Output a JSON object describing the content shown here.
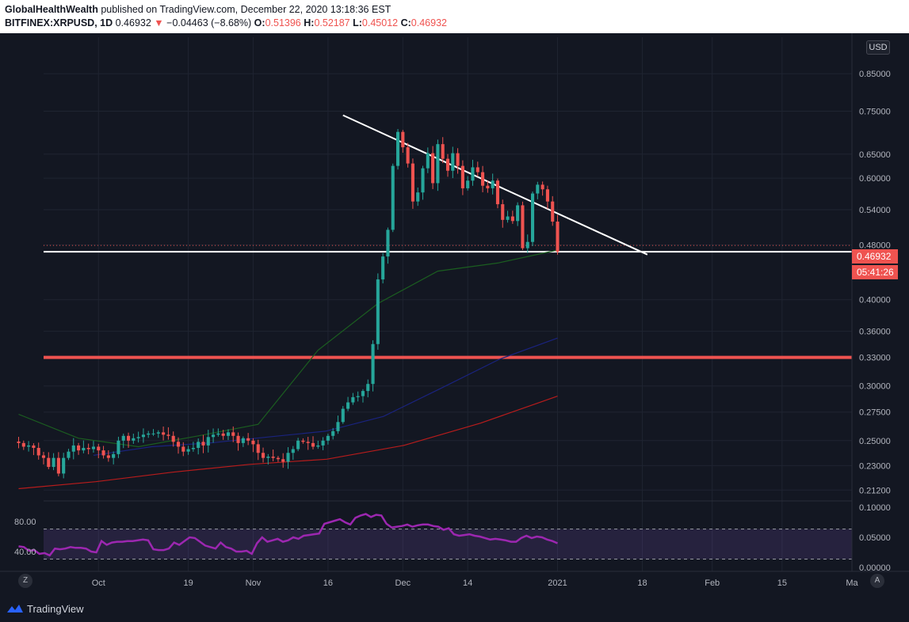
{
  "header": {
    "publisher": "GlobalHealthWealth",
    "published_text": " published on TradingView.com, December 22, 2020 13:18:36 EST",
    "symbol": "BITFINEX:XRPUSD, 1D",
    "last": "0.46932",
    "change": "−0.04463 (−8.68%)",
    "open_label": "O:",
    "open": "0.51396",
    "high_label": "H:",
    "high": "0.52187",
    "low_label": "L:",
    "low": "0.45012",
    "close_label": "C:",
    "close": "0.46932"
  },
  "currency_badge": "USD",
  "last_price_tag": "0.46932",
  "countdown_tag": "05:41:26",
  "footer": {
    "brand": "TradingView"
  },
  "buttons": {
    "zoom": "Z",
    "auto": "A"
  },
  "colors": {
    "background": "#131722",
    "up": "#26a69a",
    "down": "#ef5350",
    "ma_fast": "#1b5e20",
    "ma_mid": "#1a237e",
    "ma_slow": "#b71c1c",
    "rsi": "#9c27b0",
    "support_line": "#ef5350",
    "trend_line": "#ffffff"
  },
  "chart_data": [
    {
      "type": "candlestick",
      "scale": "log",
      "ylim": [
        0.205,
        0.96
      ],
      "y_ticks": [
        "0.85000",
        "0.75000",
        "0.65000",
        "0.60000",
        "0.54000",
        "0.48000",
        "0.40000",
        "0.36000",
        "0.33000",
        "0.30000",
        "0.27500",
        "0.25000",
        "0.23000",
        "0.21200"
      ],
      "x_tick_labels": [
        "Oct",
        "19",
        "Nov",
        "16",
        "Dec",
        "14",
        "2021",
        "18",
        "Feb",
        "15",
        "Ma"
      ],
      "x_tick_dates": [
        "2020-10-01",
        "2020-10-19",
        "2020-11-01",
        "2020-11-16",
        "2020-12-01",
        "2020-12-14",
        "2021-01-01",
        "2021-01-18",
        "2021-02-01",
        "2021-02-15",
        "2021-03-01"
      ],
      "x_range": [
        "2020-09-20",
        "2021-03-01"
      ],
      "closes": [
        0.248,
        0.245,
        0.246,
        0.244,
        0.238,
        0.236,
        0.229,
        0.236,
        0.224,
        0.236,
        0.241,
        0.246,
        0.242,
        0.244,
        0.243,
        0.245,
        0.242,
        0.238,
        0.236,
        0.239,
        0.25,
        0.254,
        0.25,
        0.252,
        0.253,
        0.255,
        0.256,
        0.256,
        0.257,
        0.255,
        0.254,
        0.249,
        0.245,
        0.241,
        0.243,
        0.244,
        0.249,
        0.246,
        0.253,
        0.255,
        0.256,
        0.254,
        0.257,
        0.254,
        0.248,
        0.252,
        0.25,
        0.247,
        0.24,
        0.236,
        0.237,
        0.236,
        0.235,
        0.233,
        0.24,
        0.243,
        0.25,
        0.249,
        0.248,
        0.245,
        0.246,
        0.25,
        0.254,
        0.258,
        0.266,
        0.278,
        0.284,
        0.289,
        0.29,
        0.295,
        0.302,
        0.345,
        0.428,
        0.462,
        0.505,
        0.625,
        0.7,
        0.665,
        0.63,
        0.555,
        0.572,
        0.62,
        0.652,
        0.59,
        0.672,
        0.64,
        0.615,
        0.652,
        0.625,
        0.58,
        0.595,
        0.622,
        0.612,
        0.585,
        0.58,
        0.595,
        0.55,
        0.522,
        0.528,
        0.52,
        0.548,
        0.475,
        0.485,
        0.57,
        0.587,
        0.578,
        0.555,
        0.519,
        0.4693
      ],
      "ma_fast": [
        0.273,
        0.252,
        0.245,
        0.254,
        0.264,
        0.338,
        0.395,
        0.44,
        0.452,
        0.472
      ],
      "ma_mid": [
        0.238,
        0.245,
        0.248,
        0.253,
        0.258,
        0.271,
        0.298,
        0.328,
        0.352
      ],
      "ma_slow": [
        0.213,
        0.218,
        0.225,
        0.231,
        0.235,
        0.246,
        0.265,
        0.29
      ],
      "horizontal_lines": [
        {
          "price": 0.33,
          "color": "red"
        },
        {
          "price": 0.4693,
          "color": "white"
        }
      ],
      "trend_line": {
        "from": [
          "2020-11-19",
          0.74
        ],
        "to": [
          "2021-01-19",
          0.465
        ]
      }
    },
    {
      "type": "line",
      "name_hint": "RSI pane",
      "y_ticks_left": [
        "80.00",
        "40.00"
      ],
      "y_ticks_right": [
        "0.10000",
        "0.05000",
        "0.00000"
      ],
      "bands": [
        70,
        30
      ],
      "values": [
        47,
        46,
        41,
        42,
        37,
        38,
        35,
        44,
        43,
        44,
        46,
        45,
        45,
        44,
        40,
        39,
        54,
        49,
        52,
        53,
        53,
        54,
        54,
        55,
        56,
        55,
        43,
        42,
        42,
        44,
        52,
        49,
        54,
        59,
        58,
        53,
        48,
        46,
        44,
        52,
        46,
        44,
        40,
        40,
        41,
        37,
        51,
        59,
        53,
        55,
        57,
        53,
        55,
        59,
        57,
        61,
        62,
        63,
        64,
        77,
        79,
        81,
        83,
        79,
        76,
        85,
        88,
        90,
        86,
        89,
        88,
        77,
        72,
        73,
        74,
        76,
        73,
        75,
        76,
        76,
        74,
        73,
        69,
        71,
        63,
        61,
        62,
        63,
        61,
        60,
        58,
        56,
        57,
        56,
        55,
        53,
        53,
        58,
        61,
        58,
        60,
        59,
        56,
        54,
        51
      ]
    }
  ]
}
